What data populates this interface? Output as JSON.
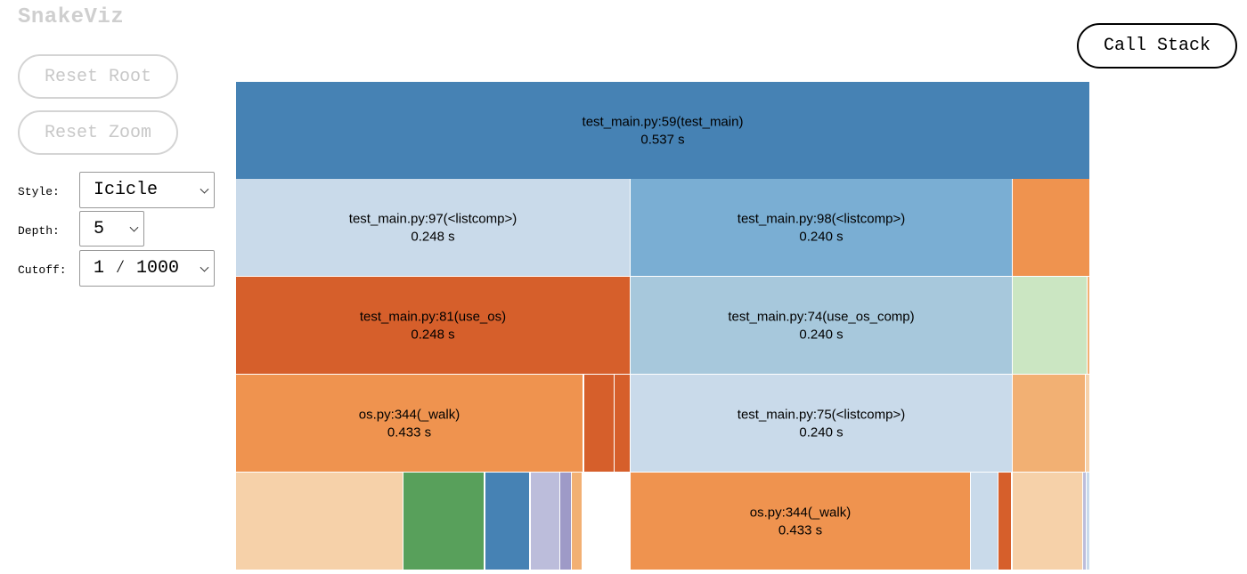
{
  "app": {
    "title": "SnakeViz"
  },
  "sidebar": {
    "reset_root_label": "Reset Root",
    "reset_zoom_label": "Reset Zoom",
    "style": {
      "label": "Style:",
      "value": "Icicle"
    },
    "depth": {
      "label": "Depth:",
      "value": "5"
    },
    "cutoff": {
      "label": "Cutoff:",
      "value": "1 ⁄ 1000"
    }
  },
  "call_stack_label": "Call Stack",
  "colors": {
    "blue": "#4682b4",
    "light_blue": "#c9daea",
    "mid_blue": "#7aaed3",
    "pale_blue": "#a7c8dc",
    "orange": "#ef934f",
    "dark_orange": "#d65f2b",
    "peach": "#f2b073",
    "light_peach": "#f6d1a9",
    "green": "#58a05b",
    "light_green": "#cbe6c2",
    "lavender": "#bcbddb",
    "purple": "#9e9ac7"
  },
  "icicle_labels": [
    {
      "name": "test_main.py:59(test_main)",
      "time": "0.537 s"
    },
    {
      "name": "test_main.py:97(<listcomp>)",
      "time": "0.248 s"
    },
    {
      "name": "test_main.py:98(<listcomp>)",
      "time": "0.240 s"
    },
    {
      "name": "test_main.py:81(use_os)",
      "time": "0.248 s"
    },
    {
      "name": "test_main.py:74(use_os_comp)",
      "time": "0.240 s"
    },
    {
      "name": "os.py:344(_walk)",
      "time": "0.433 s"
    },
    {
      "name": "test_main.py:75(<listcomp>)",
      "time": "0.240 s"
    },
    {
      "name": "os.py:344(_walk)",
      "time": "0.433 s"
    }
  ]
}
